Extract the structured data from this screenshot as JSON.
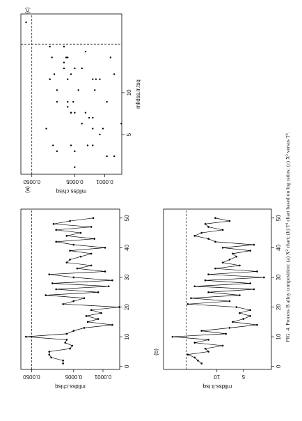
{
  "caption": "FIG. 4. Process B alloy composition: (a) X² chart; (b) T² chart based on log ratios; (c) X² versus T².",
  "chart_data": [
    {
      "type": "line",
      "title": "(a)",
      "y_label": "mlldss.chisq",
      "log_y": true,
      "color": "#000000",
      "x": [
        1,
        2,
        3,
        4,
        5,
        6,
        7,
        8,
        9,
        10,
        11,
        12,
        13,
        14,
        15,
        16,
        17,
        18,
        19,
        20,
        21,
        22,
        23,
        24,
        25,
        26,
        27,
        28,
        29,
        30,
        31,
        32,
        33,
        34,
        35,
        36,
        37,
        38,
        39,
        40,
        41,
        42,
        43,
        44,
        45,
        46,
        47,
        48,
        49,
        50
      ],
      "values": [
        0.00089,
        0.00089,
        0.0017,
        0.0019,
        0.0019,
        0.00061,
        0.00054,
        0.00079,
        0.00073,
        0.0068,
        0.00073,
        0.0005,
        0.00028,
        6e-05,
        0.00023,
        0.00013,
        0.00025,
        0.00011,
        0.00019,
        4.1e-05,
        0.00089,
        0.0005,
        0.00028,
        0.0023,
        0.00013,
        0.0013,
        7.3e-05,
        0.0016,
        6e-05,
        0.0005,
        0.0019,
        8.9e-05,
        0.00041,
        0.00019,
        0.00073,
        0.00061,
        0.00034,
        0.00019,
        0.00061,
        8.9e-05,
        0.0005,
        0.0013,
        0.00016,
        0.00073,
        0.00034,
        0.0013,
        0.00019,
        0.0015,
        0.00061,
        0.00017
      ],
      "limit": 0.005,
      "xlim": [
        -1,
        53
      ],
      "xticks": [
        0,
        10,
        20,
        30,
        40,
        50
      ],
      "ylim": [
        4e-05,
        0.009
      ],
      "yticks": [
        {
          "value": 0.005,
          "label": "0.0050"
        },
        0.0005,
        0.0001
      ]
    },
    {
      "type": "line",
      "title": "(b)",
      "y_label": "mlldss.lr.tsq",
      "log_y": false,
      "color": "#000000",
      "x": [
        1,
        2,
        3,
        4,
        5,
        6,
        7,
        8,
        9,
        10,
        11,
        12,
        13,
        14,
        15,
        16,
        17,
        18,
        19,
        20,
        21,
        22,
        23,
        24,
        25,
        26,
        27,
        28,
        29,
        30,
        31,
        32,
        33,
        34,
        35,
        36,
        37,
        38,
        39,
        40,
        41,
        42,
        43,
        44,
        45,
        46,
        47,
        48,
        49,
        50
      ],
      "values": [
        12.9,
        13.6,
        14.2,
        15.5,
        11.6,
        12.2,
        8.9,
        14.2,
        11.6,
        18.4,
        8.3,
        12.9,
        7.6,
        2.4,
        7.0,
        5.0,
        3.7,
        5.7,
        3.7,
        6.3,
        15.5,
        7.6,
        14.9,
        5.7,
        11.6,
        3.0,
        14.2,
        3.7,
        12.2,
        1.1,
        11.6,
        2.4,
        10.3,
        5.7,
        8.9,
        7.6,
        6.3,
        7.0,
        3.7,
        8.9,
        3.0,
        10.3,
        11.6,
        14.2,
        12.9,
        8.9,
        11.6,
        12.2,
        7.6,
        10.3
      ],
      "limit": 15.8,
      "xlim": [
        -1,
        53
      ],
      "xticks": [
        0,
        10,
        20,
        30,
        40,
        50
      ],
      "ylim": [
        -0.3,
        20.1
      ],
      "yticks": [
        5,
        10
      ]
    },
    {
      "type": "scatter",
      "title": "(c)",
      "x_label": "mlldss.lr.tsq",
      "y_label": "mlldss.chisq",
      "log_y": true,
      "color": "#000000",
      "x": [
        12.9,
        13.6,
        14.2,
        15.5,
        11.6,
        12.2,
        8.9,
        14.2,
        11.6,
        18.4,
        8.3,
        12.9,
        7.6,
        2.4,
        7.0,
        5.0,
        3.7,
        5.7,
        3.7,
        6.3,
        15.5,
        7.6,
        14.9,
        5.7,
        11.6,
        3.0,
        14.2,
        3.7,
        12.2,
        1.1,
        11.6,
        2.4,
        10.3,
        5.7,
        8.9,
        7.6,
        6.3,
        7.0,
        3.7,
        8.9,
        3.0,
        10.3,
        11.6,
        14.2,
        12.9,
        8.9,
        11.6,
        12.2,
        7.6,
        10.3
      ],
      "values": [
        0.00089,
        0.00089,
        0.0017,
        0.0019,
        0.0019,
        0.00061,
        0.00054,
        0.00079,
        0.00073,
        0.0068,
        0.00073,
        0.0005,
        0.00028,
        6e-05,
        0.00023,
        0.00013,
        0.00025,
        0.00011,
        0.00019,
        4.1e-05,
        0.00089,
        0.0005,
        0.00028,
        0.0023,
        0.00013,
        0.0013,
        7.3e-05,
        0.0016,
        6e-05,
        0.0005,
        0.0019,
        8.9e-05,
        0.00041,
        0.00019,
        0.00073,
        0.00061,
        0.00034,
        0.00019,
        0.00061,
        8.9e-05,
        0.0005,
        0.0013,
        0.00016,
        0.00073,
        0.00034,
        0.0013,
        0.00019,
        0.0015,
        0.00061,
        0.00017
      ],
      "xlimit": 15.8,
      "ylimit": 0.005,
      "xlim": [
        0.25,
        19.4
      ],
      "xticks": [
        5,
        10
      ],
      "ylim": [
        4e-05,
        0.009
      ],
      "yticks": [
        {
          "value": 0.005,
          "label": "0.0050"
        },
        0.0005,
        0.0001
      ]
    }
  ]
}
